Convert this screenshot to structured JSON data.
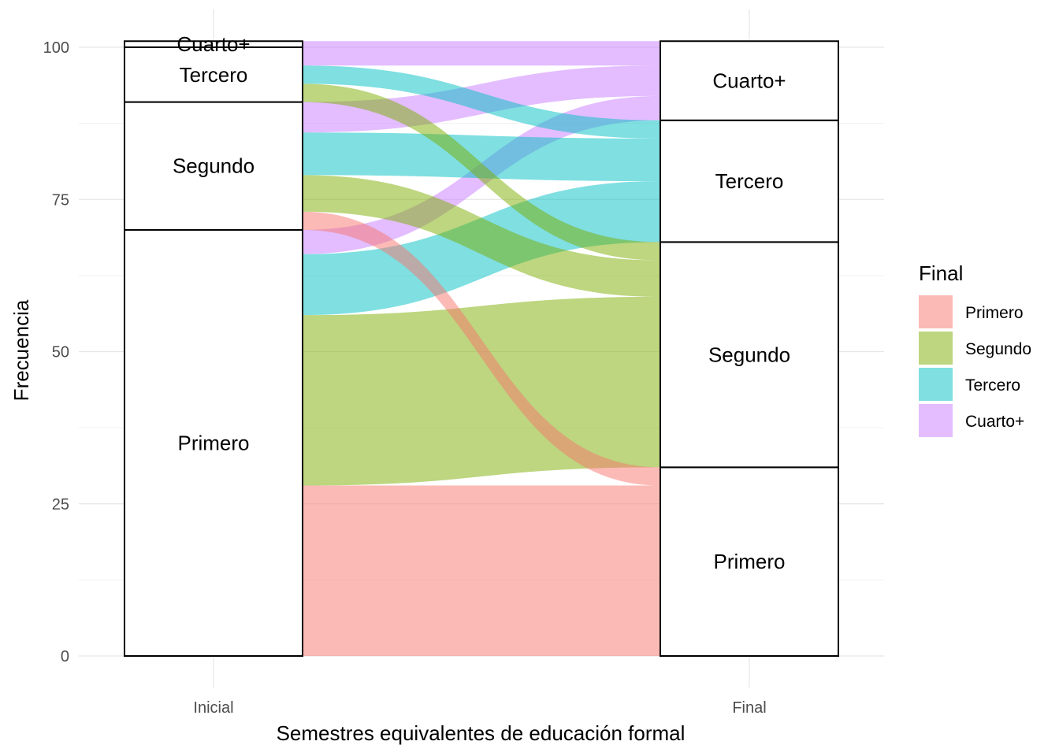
{
  "chart_data": {
    "type": "alluvial",
    "xlabel": "Semestres equivalentes de educación formal",
    "ylabel": "Frecuencia",
    "axes": [
      "Inicial",
      "Final"
    ],
    "ylim": [
      0,
      101
    ],
    "yticks": [
      0,
      25,
      50,
      75,
      100
    ],
    "grid": true,
    "legend": {
      "title": "Final",
      "position": "right",
      "entries": [
        "Primero",
        "Segundo",
        "Tercero",
        "Cuarto+"
      ]
    },
    "colors": {
      "Primero": "#F8766D",
      "Segundo": "#7CAE00",
      "Tercero": "#00BFC4",
      "Cuarto+": "#C77CFF"
    },
    "categories": [
      "Primero",
      "Segundo",
      "Tercero",
      "Cuarto+"
    ],
    "inicial_totals": {
      "Primero": 70,
      "Segundo": 21,
      "Tercero": 9,
      "Cuarto+": 1
    },
    "final_totals": {
      "Primero": 31,
      "Segundo": 37,
      "Tercero": 20,
      "Cuarto+": 13
    },
    "flows": [
      {
        "from": "Primero",
        "to": "Primero",
        "value": 28
      },
      {
        "from": "Primero",
        "to": "Segundo",
        "value": 28
      },
      {
        "from": "Primero",
        "to": "Tercero",
        "value": 10
      },
      {
        "from": "Primero",
        "to": "Cuarto+",
        "value": 4
      },
      {
        "from": "Segundo",
        "to": "Primero",
        "value": 3
      },
      {
        "from": "Segundo",
        "to": "Segundo",
        "value": 6
      },
      {
        "from": "Segundo",
        "to": "Tercero",
        "value": 7
      },
      {
        "from": "Segundo",
        "to": "Cuarto+",
        "value": 5
      },
      {
        "from": "Tercero",
        "to": "Segundo",
        "value": 3
      },
      {
        "from": "Tercero",
        "to": "Tercero",
        "value": 3
      },
      {
        "from": "Tercero",
        "to": "Cuarto+",
        "value": 3
      },
      {
        "from": "Cuarto+",
        "to": "Cuarto+",
        "value": 1
      }
    ]
  }
}
